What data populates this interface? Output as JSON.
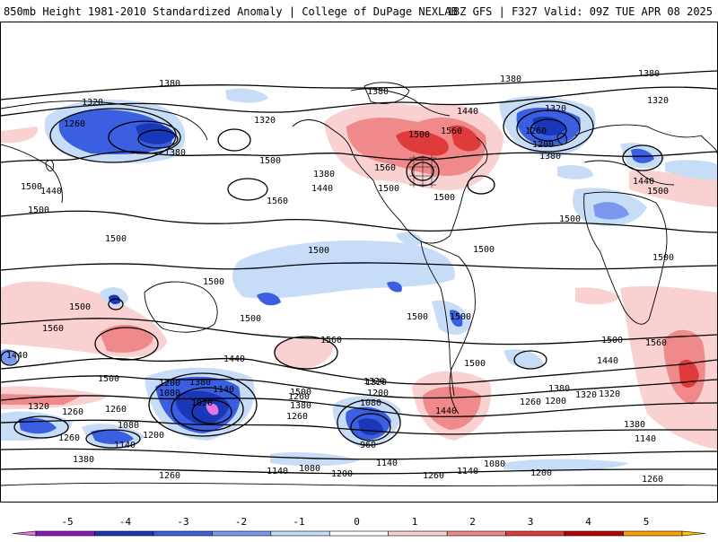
{
  "header": {
    "title": "850mb Height 1981-2010 Standardized Anomaly | College of DuPage NEXLAB",
    "run_info": "18Z GFS | F327 Valid: 09Z TUE APR 08 2025"
  },
  "map": {
    "contour_labels": [
      "1380",
      "1320",
      "1260",
      "1380",
      "1500",
      "1320",
      "1440",
      "1500",
      "1560",
      "1380",
      "1500",
      "1440",
      "1500",
      "1500",
      "1500",
      "1500",
      "1380",
      "1440",
      "1560",
      "1500",
      "1500",
      "1560",
      "1500",
      "1380",
      "1320",
      "1320",
      "1260",
      "1380",
      "1200",
      "1380",
      "1440",
      "1500",
      "1500",
      "1500",
      "1500",
      "1500",
      "1500",
      "1500",
      "1500",
      "1560",
      "1560",
      "1500",
      "1440",
      "1560",
      "1440",
      "1500",
      "1380",
      "1440",
      "1320",
      "1320",
      "1260",
      "1200",
      "1140",
      "1080",
      "1020",
      "1260",
      "1500",
      "1380",
      "1260",
      "1200",
      "1320",
      "1080",
      "960",
      "1140",
      "1440",
      "1260",
      "1380",
      "1200",
      "1320",
      "1260",
      "1080",
      "1200",
      "1140",
      "1380",
      "1260",
      "1140",
      "1080",
      "1080",
      "1140",
      "1200",
      "1260",
      "1200",
      "1140",
      "1380",
      "1320",
      "1260",
      "1260"
    ],
    "colors": {
      "ocean_bg": "#ffffff",
      "contour": "#000000",
      "boundary": "#000000"
    }
  },
  "colorbar": {
    "ticks": [
      "-5",
      "-4",
      "-3",
      "-2",
      "-1",
      "0",
      "1",
      "2",
      "3",
      "4",
      "5"
    ],
    "colors": [
      "#e377e3",
      "#8a1ab8",
      "#1a37b8",
      "#3a5fe0",
      "#7b98f0",
      "#c7dcf7",
      "#ffffff",
      "#f9d1d1",
      "#f08a8a",
      "#e03b3b",
      "#b80000",
      "#ff9f00",
      "#ffc800"
    ]
  }
}
